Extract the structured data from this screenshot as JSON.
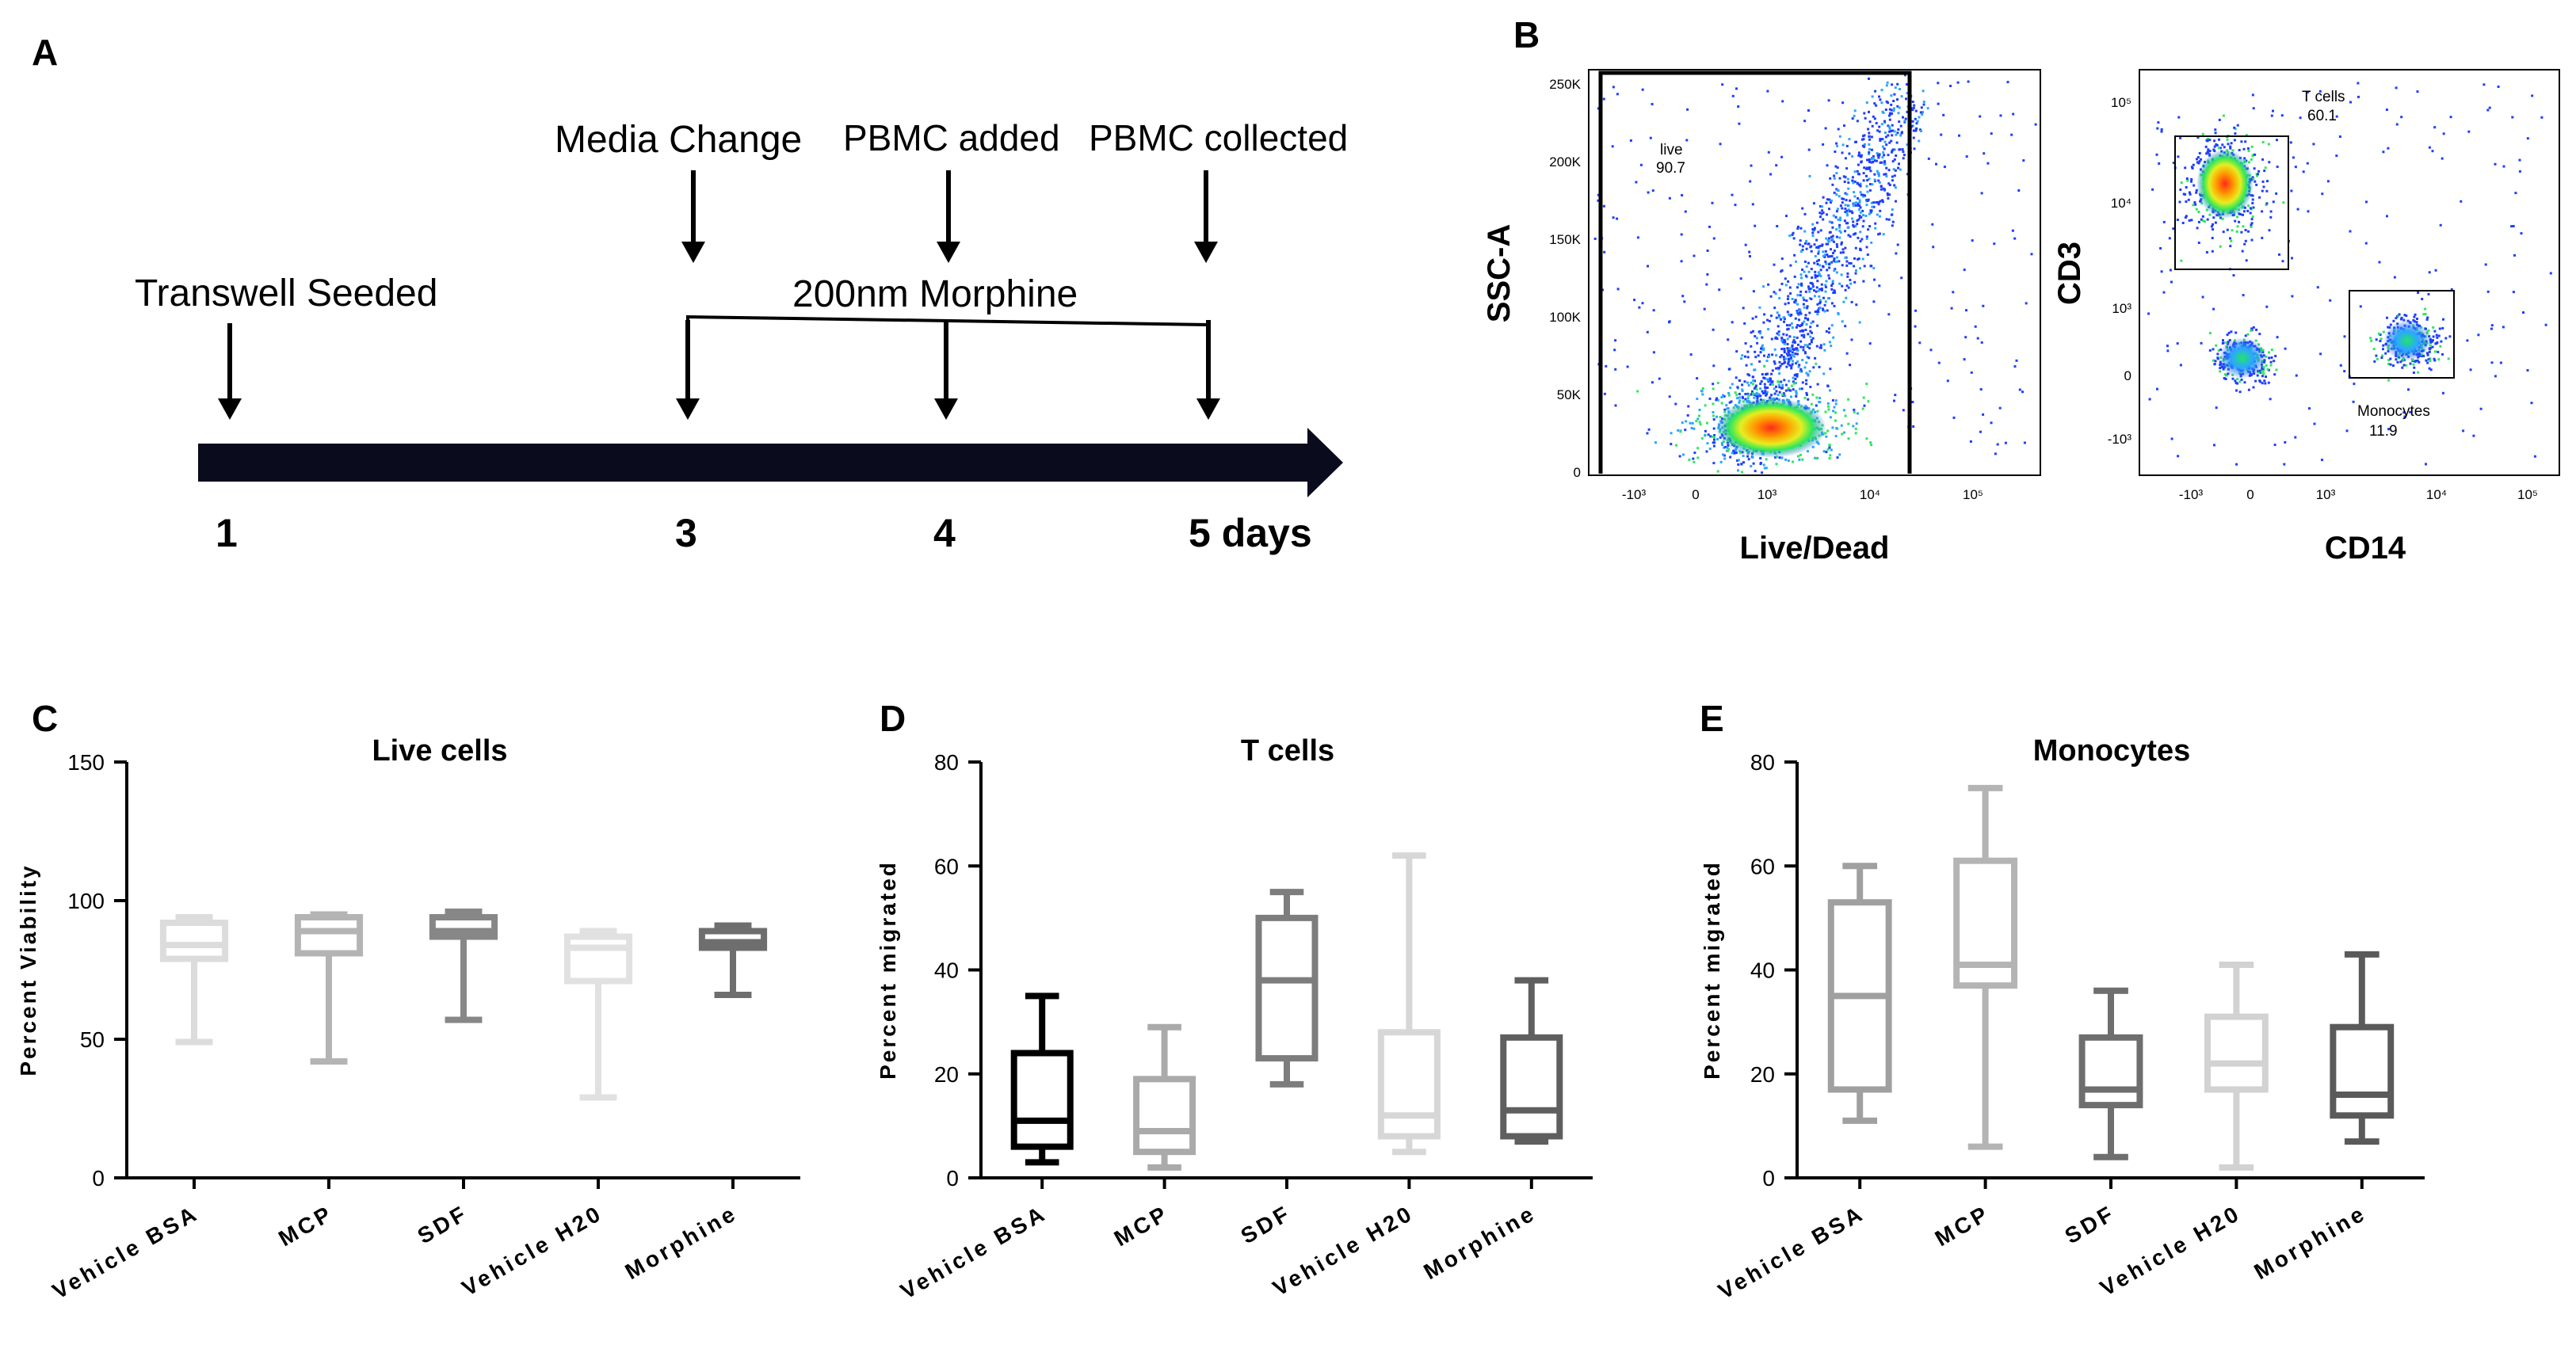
{
  "panels": {
    "A": "A",
    "B": "B",
    "C": "C",
    "D": "D",
    "E": "E"
  },
  "timeline": {
    "events_top": [
      "Media Change",
      "PBMC added",
      "PBMC collected"
    ],
    "seeded_label": "Transwell Seeded",
    "treatment_label": "200nm Morphine",
    "days": [
      "1",
      "3",
      "4",
      "5 days"
    ]
  },
  "flow": {
    "live_dead_plot": {
      "y_label": "SSC-A",
      "x_label": "Live/Dead",
      "y_ticks": [
        "250K",
        "200K",
        "150K",
        "100K",
        "50K",
        "0"
      ],
      "x_ticks": [
        "-10³",
        "0",
        "10³",
        "10⁴",
        "10⁵"
      ],
      "gate_name": "live",
      "gate_value": "90.7"
    },
    "cd3_cd14_plot": {
      "y_label": "CD3",
      "x_label": "CD14",
      "y_ticks": [
        "10⁵",
        "10⁴",
        "10³",
        "0",
        "-10³"
      ],
      "x_ticks": [
        "-10³",
        "0",
        "10³",
        "10⁴",
        "10⁵"
      ],
      "tcell_gate_name": "T cells",
      "tcell_gate_value": "60.1",
      "mono_gate_name": "Monocytes",
      "mono_gate_value": "11.9"
    }
  },
  "chart_data": [
    {
      "type": "box",
      "panel": "C",
      "title": "Live cells",
      "ylabel": "Percent Viability",
      "ylim": [
        0,
        150
      ],
      "yticks": [
        0,
        50,
        100,
        150
      ],
      "categories": [
        "Vehicle BSA",
        "MCP",
        "SDF",
        "Vehicle H20",
        "Morphine"
      ],
      "colors": [
        "#dcdcdc",
        "#b4b4b4",
        "#878787",
        "#e1e1e1",
        "#6e6e6e"
      ],
      "boxes": [
        {
          "min": 49,
          "q1": 79,
          "median": 84,
          "q3": 92,
          "max": 94
        },
        {
          "min": 42,
          "q1": 81,
          "median": 89,
          "q3": 94,
          "max": 95
        },
        {
          "min": 57,
          "q1": 87,
          "median": 89,
          "q3": 94,
          "max": 96
        },
        {
          "min": 29,
          "q1": 71,
          "median": 83,
          "q3": 87,
          "max": 89
        },
        {
          "min": 66,
          "q1": 83,
          "median": 85,
          "q3": 89,
          "max": 91
        }
      ]
    },
    {
      "type": "box",
      "panel": "D",
      "title": "T cells",
      "ylabel": "Percent migrated",
      "ylim": [
        0,
        80
      ],
      "yticks": [
        0,
        20,
        40,
        60,
        80
      ],
      "categories": [
        "Vehicle BSA",
        "MCP",
        "SDF",
        "Vehicle H20",
        "Morphine"
      ],
      "colors": [
        "#000000",
        "#aaaaaa",
        "#7d7d7d",
        "#d7d7d7",
        "#5f5f5f"
      ],
      "boxes": [
        {
          "min": 3,
          "q1": 6,
          "median": 11,
          "q3": 24,
          "max": 35
        },
        {
          "min": 2,
          "q1": 5,
          "median": 9,
          "q3": 19,
          "max": 29
        },
        {
          "min": 18,
          "q1": 23,
          "median": 38,
          "q3": 50,
          "max": 55
        },
        {
          "min": 5,
          "q1": 8,
          "median": 12,
          "q3": 28,
          "max": 62
        },
        {
          "min": 7,
          "q1": 8,
          "median": 13,
          "q3": 27,
          "max": 38
        }
      ]
    },
    {
      "type": "box",
      "panel": "E",
      "title": "Monocytes",
      "ylabel": "Percent migrated",
      "ylim": [
        0,
        80
      ],
      "yticks": [
        0,
        20,
        40,
        60,
        80
      ],
      "categories": [
        "Vehicle BSA",
        "MCP",
        "SDF",
        "Vehicle H20",
        "Morphine"
      ],
      "colors": [
        "#a0a0a0",
        "#b4b4b4",
        "#6e6e6e",
        "#d2d2d2",
        "#5a5a5a"
      ],
      "boxes": [
        {
          "min": 11,
          "q1": 17,
          "median": 35,
          "q3": 53,
          "max": 60
        },
        {
          "min": 6,
          "q1": 37,
          "median": 41,
          "q3": 61,
          "max": 75
        },
        {
          "min": 4,
          "q1": 14,
          "median": 17,
          "q3": 27,
          "max": 36
        },
        {
          "min": 2,
          "q1": 17,
          "median": 22,
          "q3": 31,
          "max": 41
        },
        {
          "min": 7,
          "q1": 12,
          "median": 16,
          "q3": 29,
          "max": 43
        }
      ]
    }
  ]
}
